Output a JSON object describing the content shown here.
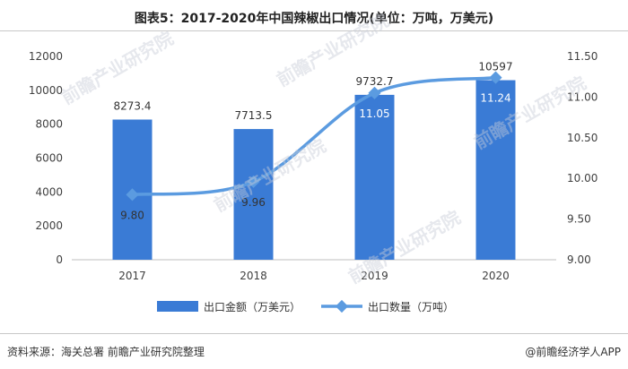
{
  "title": "图表5：2017-2020年中国辣椒出口情况(单位：万吨，万美元)",
  "source": "资料来源：海关总署 前瞻产业研究院整理",
  "brand": "@前瞻经济学人APP",
  "watermark": "前瞻产业研究院",
  "colors": {
    "bar": "#3a7bd5",
    "line": "#5b9be0",
    "grid": "#d9d9d9",
    "text": "#404040"
  },
  "chart_data": {
    "type": "bar",
    "categories": [
      "2017",
      "2018",
      "2019",
      "2020"
    ],
    "series": [
      {
        "name": "出口金额（万美元）",
        "type": "bar",
        "axis": "left",
        "values": [
          8273.4,
          7713.5,
          9732.7,
          10597
        ],
        "labels": [
          "8273.4",
          "7713.5",
          "9732.7",
          "10597"
        ]
      },
      {
        "name": "出口数量（万吨）",
        "type": "line",
        "axis": "right",
        "values": [
          9.8,
          9.96,
          11.05,
          11.24
        ],
        "labels": [
          "9.80",
          "9.96",
          "11.05",
          "11.24"
        ]
      }
    ],
    "y_left": {
      "min": 0,
      "max": 12000,
      "ticks": [
        "0",
        "2000",
        "4000",
        "6000",
        "8000",
        "10000",
        "12000"
      ]
    },
    "y_right": {
      "min": 9.0,
      "max": 11.5,
      "ticks": [
        "9.00",
        "9.50",
        "10.00",
        "10.50",
        "11.00",
        "11.50"
      ]
    },
    "legend_position": "bottom",
    "grid": false
  }
}
